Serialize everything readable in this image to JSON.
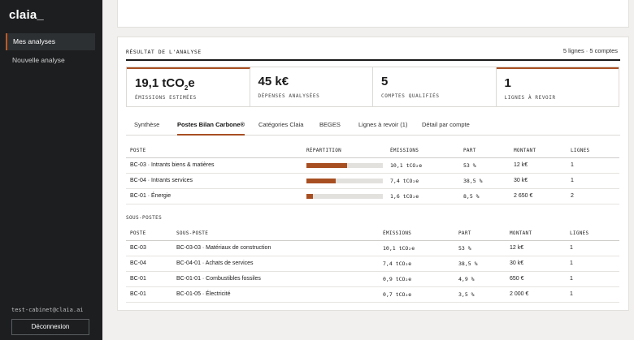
{
  "sidebar": {
    "logo": "claia_",
    "items": [
      {
        "label": "Mes analyses"
      },
      {
        "label": "Nouvelle analyse"
      }
    ],
    "user_email": "test-cabinet@claia.ai",
    "logout_label": "Déconnexion"
  },
  "result": {
    "title": "RÉSULTAT DE L'ANALYSE",
    "meta": "5 lignes · 5 comptes",
    "kpis": [
      {
        "value": "19,1 tCO",
        "sub": "2",
        "suffix": "e",
        "label": "ÉMISSIONS ESTIMÉES"
      },
      {
        "value": "45 k€",
        "label": "DÉPENSES ANALYSÉES"
      },
      {
        "value": "5",
        "label": "COMPTES QUALIFIÉS"
      },
      {
        "value": "1",
        "label": "LIGNES À REVOIR"
      }
    ],
    "tabs": [
      {
        "label": "Synthèse"
      },
      {
        "label": "Postes Bilan Carbone®"
      },
      {
        "label": "Catégories Claia"
      },
      {
        "label": "BEGES"
      },
      {
        "label": "Lignes à revoir (1)"
      },
      {
        "label": "Détail par compte"
      }
    ],
    "postes_headers": [
      "POSTE",
      "RÉPARTITION",
      "ÉMISSIONS",
      "PART",
      "MONTANT",
      "LIGNES"
    ],
    "postes": [
      {
        "poste": "BC-03 · Intrants biens & matières",
        "share": 0.53,
        "emissions": "10,1 tCO₂e",
        "part": "53 %",
        "montant": "12 k€",
        "lignes": "1"
      },
      {
        "poste": "BC-04 · Intrants services",
        "share": 0.385,
        "emissions": "7,4 tCO₂e",
        "part": "38,5 %",
        "montant": "30 k€",
        "lignes": "1"
      },
      {
        "poste": "BC-01 · Énergie",
        "share": 0.085,
        "emissions": "1,6 tCO₂e",
        "part": "8,5 %",
        "montant": "2 650 €",
        "lignes": "2"
      }
    ],
    "sub_title": "SOUS-POSTES",
    "sub_headers": [
      "POSTE",
      "SOUS-POSTE",
      "ÉMISSIONS",
      "PART",
      "MONTANT",
      "LIGNES"
    ],
    "sous_postes": [
      {
        "poste": "BC-03",
        "sous_poste": "BC-03-03 · Matériaux de construction",
        "emissions": "10,1 tCO₂e",
        "part": "53 %",
        "montant": "12 k€",
        "lignes": "1"
      },
      {
        "poste": "BC-04",
        "sous_poste": "BC-04-01 · Achats de services",
        "emissions": "7,4 tCO₂e",
        "part": "38,5 %",
        "montant": "30 k€",
        "lignes": "1"
      },
      {
        "poste": "BC-01",
        "sous_poste": "BC-01-01 · Combustibles fossiles",
        "emissions": "0,9 tCO₂e",
        "part": "4,9 %",
        "montant": "650 €",
        "lignes": "1"
      },
      {
        "poste": "BC-01",
        "sous_poste": "BC-01-05 · Électricité",
        "emissions": "0,7 tCO₂e",
        "part": "3,5 %",
        "montant": "2 000 €",
        "lignes": "1"
      }
    ]
  }
}
